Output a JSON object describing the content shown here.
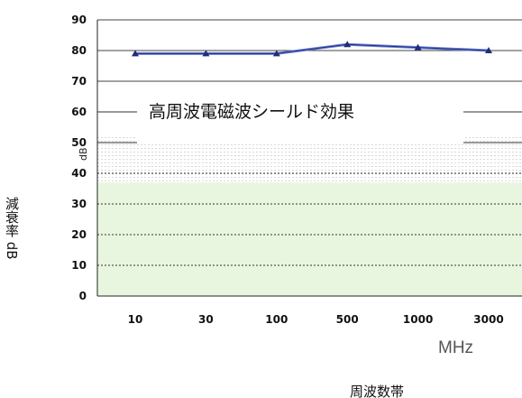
{
  "chart_data": {
    "type": "line",
    "title": "高周波電磁波シールド効果",
    "categories": [
      "10",
      "30",
      "100",
      "500",
      "1000",
      "3000"
    ],
    "series": [
      {
        "values": [
          79,
          79,
          79,
          82,
          81,
          80
        ]
      }
    ],
    "ylim": [
      0,
      90
    ],
    "yticks": [
      "0",
      "10",
      "20",
      "30",
      "40",
      "50",
      "60",
      "70",
      "80",
      "90"
    ],
    "ylabel": "減衰率 dB",
    "ylabel_inner": "dB",
    "xlabel": "周波数帯",
    "xunit": "MHz",
    "grid": true,
    "colors": {
      "line": "#6b7fd6",
      "marker": "#1f2e7a",
      "fill_low": "#e8f6e0",
      "grid": "#333333"
    }
  }
}
